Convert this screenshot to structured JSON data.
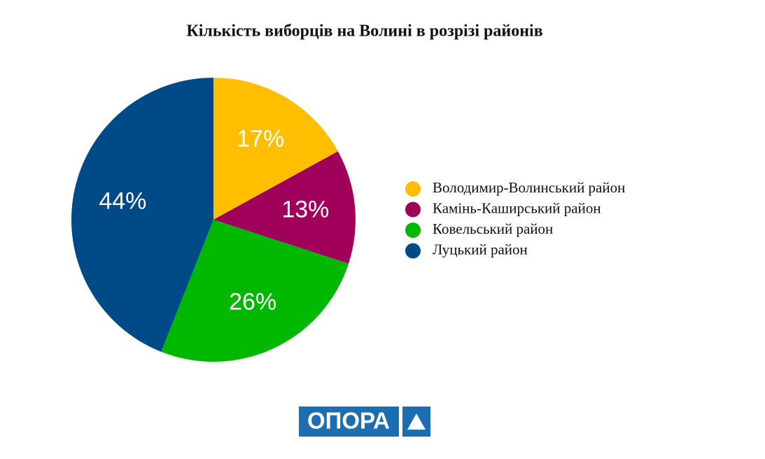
{
  "chart_data": {
    "type": "pie",
    "title": "Кількість виборців на Волині в розрізі районів",
    "categories": [
      "Володимир-Волинський район",
      "Камінь-Каширський район",
      "Ковельський район",
      "Луцький район"
    ],
    "values": [
      17,
      13,
      26,
      44
    ],
    "value_labels": [
      "17%",
      "13%",
      "26%",
      "44%"
    ],
    "colors": [
      "#ffbf00",
      "#a0005a",
      "#00b800",
      "#004a87"
    ],
    "legend": "right"
  },
  "logo": "ОПОРА"
}
